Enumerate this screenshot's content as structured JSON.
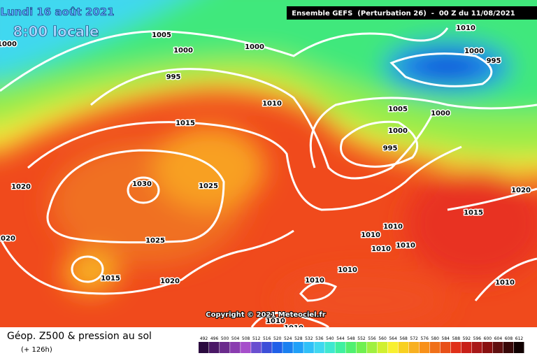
{
  "header": {
    "date": "Lundi 16 août 2021",
    "time": "8:00 locale",
    "model": "Ensemble GEFS  (Perturbation 26)  -  00 Z du 11/08/2021"
  },
  "copyright": "Copyright © 2021 Meteociel.fr",
  "footer": {
    "title": "Géop. Z500 & pression au sol",
    "subtitle": "(+ 126h)"
  },
  "isobar_labels": [
    "1005",
    "1000",
    "1000",
    "995",
    "1000",
    "1010",
    "1015",
    "1030",
    "1025",
    "1020",
    "1020",
    "1025",
    "1015",
    "1020",
    "1010",
    "1010",
    "1010",
    "1010",
    "1000",
    "995",
    "1005",
    "1000",
    "1000",
    "995",
    "1020",
    "1015",
    "1010",
    "1010",
    "1010",
    "1010",
    "1010",
    "1010"
  ],
  "legend": {
    "values": [
      492,
      496,
      500,
      504,
      508,
      512,
      516,
      520,
      524,
      528,
      532,
      536,
      540,
      544,
      548,
      552,
      556,
      560,
      564,
      568,
      572,
      576,
      580,
      584,
      588,
      592,
      596,
      600,
      604,
      608,
      612
    ],
    "colors": [
      "#2b0b3f",
      "#4a1766",
      "#6a2a8c",
      "#8a3cb0",
      "#a64fcb",
      "#6a4fd0",
      "#3d4fd8",
      "#2060e8",
      "#1a80f0",
      "#20a0f8",
      "#30c0f8",
      "#40d8f0",
      "#40e8d0",
      "#40f0a0",
      "#50f070",
      "#70f050",
      "#a0f040",
      "#d0f030",
      "#f8f030",
      "#f8d020",
      "#f8b020",
      "#f89018",
      "#f07018",
      "#e85018",
      "#e03018",
      "#c82018",
      "#a81818",
      "#881010",
      "#601010",
      "#380808",
      "#100000"
    ]
  }
}
